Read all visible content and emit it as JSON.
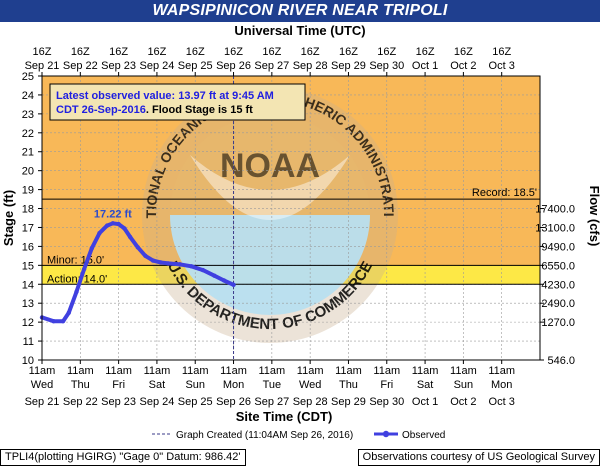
{
  "chart_data": {
    "type": "line",
    "title": "WAPSIPINICON RIVER NEAR TRIPOLI",
    "top_axis_title": "Universal Time (UTC)",
    "xlabel": "Site Time (CDT)",
    "ylabel": "Stage (ft)",
    "y2label": "Flow (cfs)",
    "ylim": [
      10,
      25
    ],
    "yticks": [
      10,
      11,
      12,
      13,
      14,
      15,
      16,
      17,
      18,
      19,
      20,
      21,
      22,
      23,
      24,
      25
    ],
    "xlim": [
      0,
      13
    ],
    "top_ticks": [
      {
        "x": 0,
        "l1": "16Z",
        "l2": "Sep 21"
      },
      {
        "x": 1,
        "l1": "16Z",
        "l2": "Sep 22"
      },
      {
        "x": 2,
        "l1": "16Z",
        "l2": "Sep 23"
      },
      {
        "x": 3,
        "l1": "16Z",
        "l2": "Sep 24"
      },
      {
        "x": 4,
        "l1": "16Z",
        "l2": "Sep 25"
      },
      {
        "x": 5,
        "l1": "16Z",
        "l2": "Sep 26"
      },
      {
        "x": 6,
        "l1": "16Z",
        "l2": "Sep 27"
      },
      {
        "x": 7,
        "l1": "16Z",
        "l2": "Sep 28"
      },
      {
        "x": 8,
        "l1": "16Z",
        "l2": "Sep 29"
      },
      {
        "x": 9,
        "l1": "16Z",
        "l2": "Sep 30"
      },
      {
        "x": 10,
        "l1": "16Z",
        "l2": "Oct 1"
      },
      {
        "x": 11,
        "l1": "16Z",
        "l2": "Oct 2"
      },
      {
        "x": 12,
        "l1": "16Z",
        "l2": "Oct 3"
      }
    ],
    "bottom_ticks": [
      {
        "x": 0,
        "l1": "11am",
        "l2": "Wed",
        "l3": "Sep 21"
      },
      {
        "x": 1,
        "l1": "11am",
        "l2": "Thu",
        "l3": "Sep 22"
      },
      {
        "x": 2,
        "l1": "11am",
        "l2": "Fri",
        "l3": "Sep 23"
      },
      {
        "x": 3,
        "l1": "11am",
        "l2": "Sat",
        "l3": "Sep 24"
      },
      {
        "x": 4,
        "l1": "11am",
        "l2": "Sun",
        "l3": "Sep 25"
      },
      {
        "x": 5,
        "l1": "11am",
        "l2": "Mon",
        "l3": "Sep 26"
      },
      {
        "x": 6,
        "l1": "11am",
        "l2": "Tue",
        "l3": "Sep 27"
      },
      {
        "x": 7,
        "l1": "11am",
        "l2": "Wed",
        "l3": "Sep 28"
      },
      {
        "x": 8,
        "l1": "11am",
        "l2": "Thu",
        "l3": "Sep 29"
      },
      {
        "x": 9,
        "l1": "11am",
        "l2": "Fri",
        "l3": "Sep 30"
      },
      {
        "x": 10,
        "l1": "11am",
        "l2": "Sat",
        "l3": "Oct 1"
      },
      {
        "x": 11,
        "l1": "11am",
        "l2": "Sun",
        "l3": "Oct 2"
      },
      {
        "x": 12,
        "l1": "11am",
        "l2": "Mon",
        "l3": "Oct 3"
      }
    ],
    "flow_ticks": [
      {
        "stage": 10,
        "label": "546.0"
      },
      {
        "stage": 12,
        "label": "1270.0"
      },
      {
        "stage": 13,
        "label": "2490.0"
      },
      {
        "stage": 14,
        "label": "4230.0"
      },
      {
        "stage": 15,
        "label": "6550.0"
      },
      {
        "stage": 16,
        "label": "9490.0"
      },
      {
        "stage": 17,
        "label": "13100.0"
      },
      {
        "stage": 18,
        "label": "17400.0"
      }
    ],
    "bands": [
      {
        "name": "Major",
        "from": 15,
        "to": 25,
        "color": "#f8b858"
      },
      {
        "name": "Action-Minor",
        "from": 14,
        "to": 15,
        "color": "#fde846"
      }
    ],
    "thresholds": [
      {
        "label": "Record: 18.5'",
        "value": 18.5
      },
      {
        "label": "Minor: 15.0'",
        "value": 15.0
      },
      {
        "label": "Action: 14.0'",
        "value": 14.0
      }
    ],
    "series": [
      {
        "name": "Observed",
        "color": "#4040e0",
        "x": [
          0,
          0.3,
          0.55,
          0.7,
          0.9,
          1.1,
          1.3,
          1.5,
          1.7,
          1.85,
          2.0,
          2.15,
          2.3,
          2.5,
          2.7,
          2.9,
          3.1,
          3.3,
          3.6,
          3.9,
          4.2,
          4.5,
          4.75,
          5.0
        ],
        "y": [
          12.25,
          12.05,
          12.05,
          12.5,
          13.6,
          14.8,
          15.9,
          16.7,
          17.1,
          17.22,
          17.18,
          16.95,
          16.5,
          15.95,
          15.5,
          15.25,
          15.15,
          15.1,
          15.05,
          14.95,
          14.75,
          14.45,
          14.2,
          13.97
        ]
      }
    ],
    "peak": {
      "label": "17.22 ft",
      "x": 1.85,
      "y": 17.22
    },
    "graph_created_x": 5.0,
    "grid": true
  },
  "info_box": {
    "line1": "Latest observed value: 13.97 ft at 9:45 AM",
    "line2a": "CDT 26-Sep-2016",
    "line2b": ". Flood Stage is 15 ft"
  },
  "legend": {
    "created_label": "Graph Created (11:04AM Sep 26, 2016)",
    "observed_label": "Observed"
  },
  "watermark": {
    "upper_text": "NATIONAL OCEANIC AND ATMOSPHERIC ADMINISTRATION",
    "lower_text": "U.S. DEPARTMENT OF COMMERCE",
    "center_text": "NOAA"
  },
  "footer": {
    "left": "TPLI4(plotting HGIRG) \"Gage 0\" Datum: 986.42'",
    "right": "Observations courtesy of US Geological Survey"
  }
}
